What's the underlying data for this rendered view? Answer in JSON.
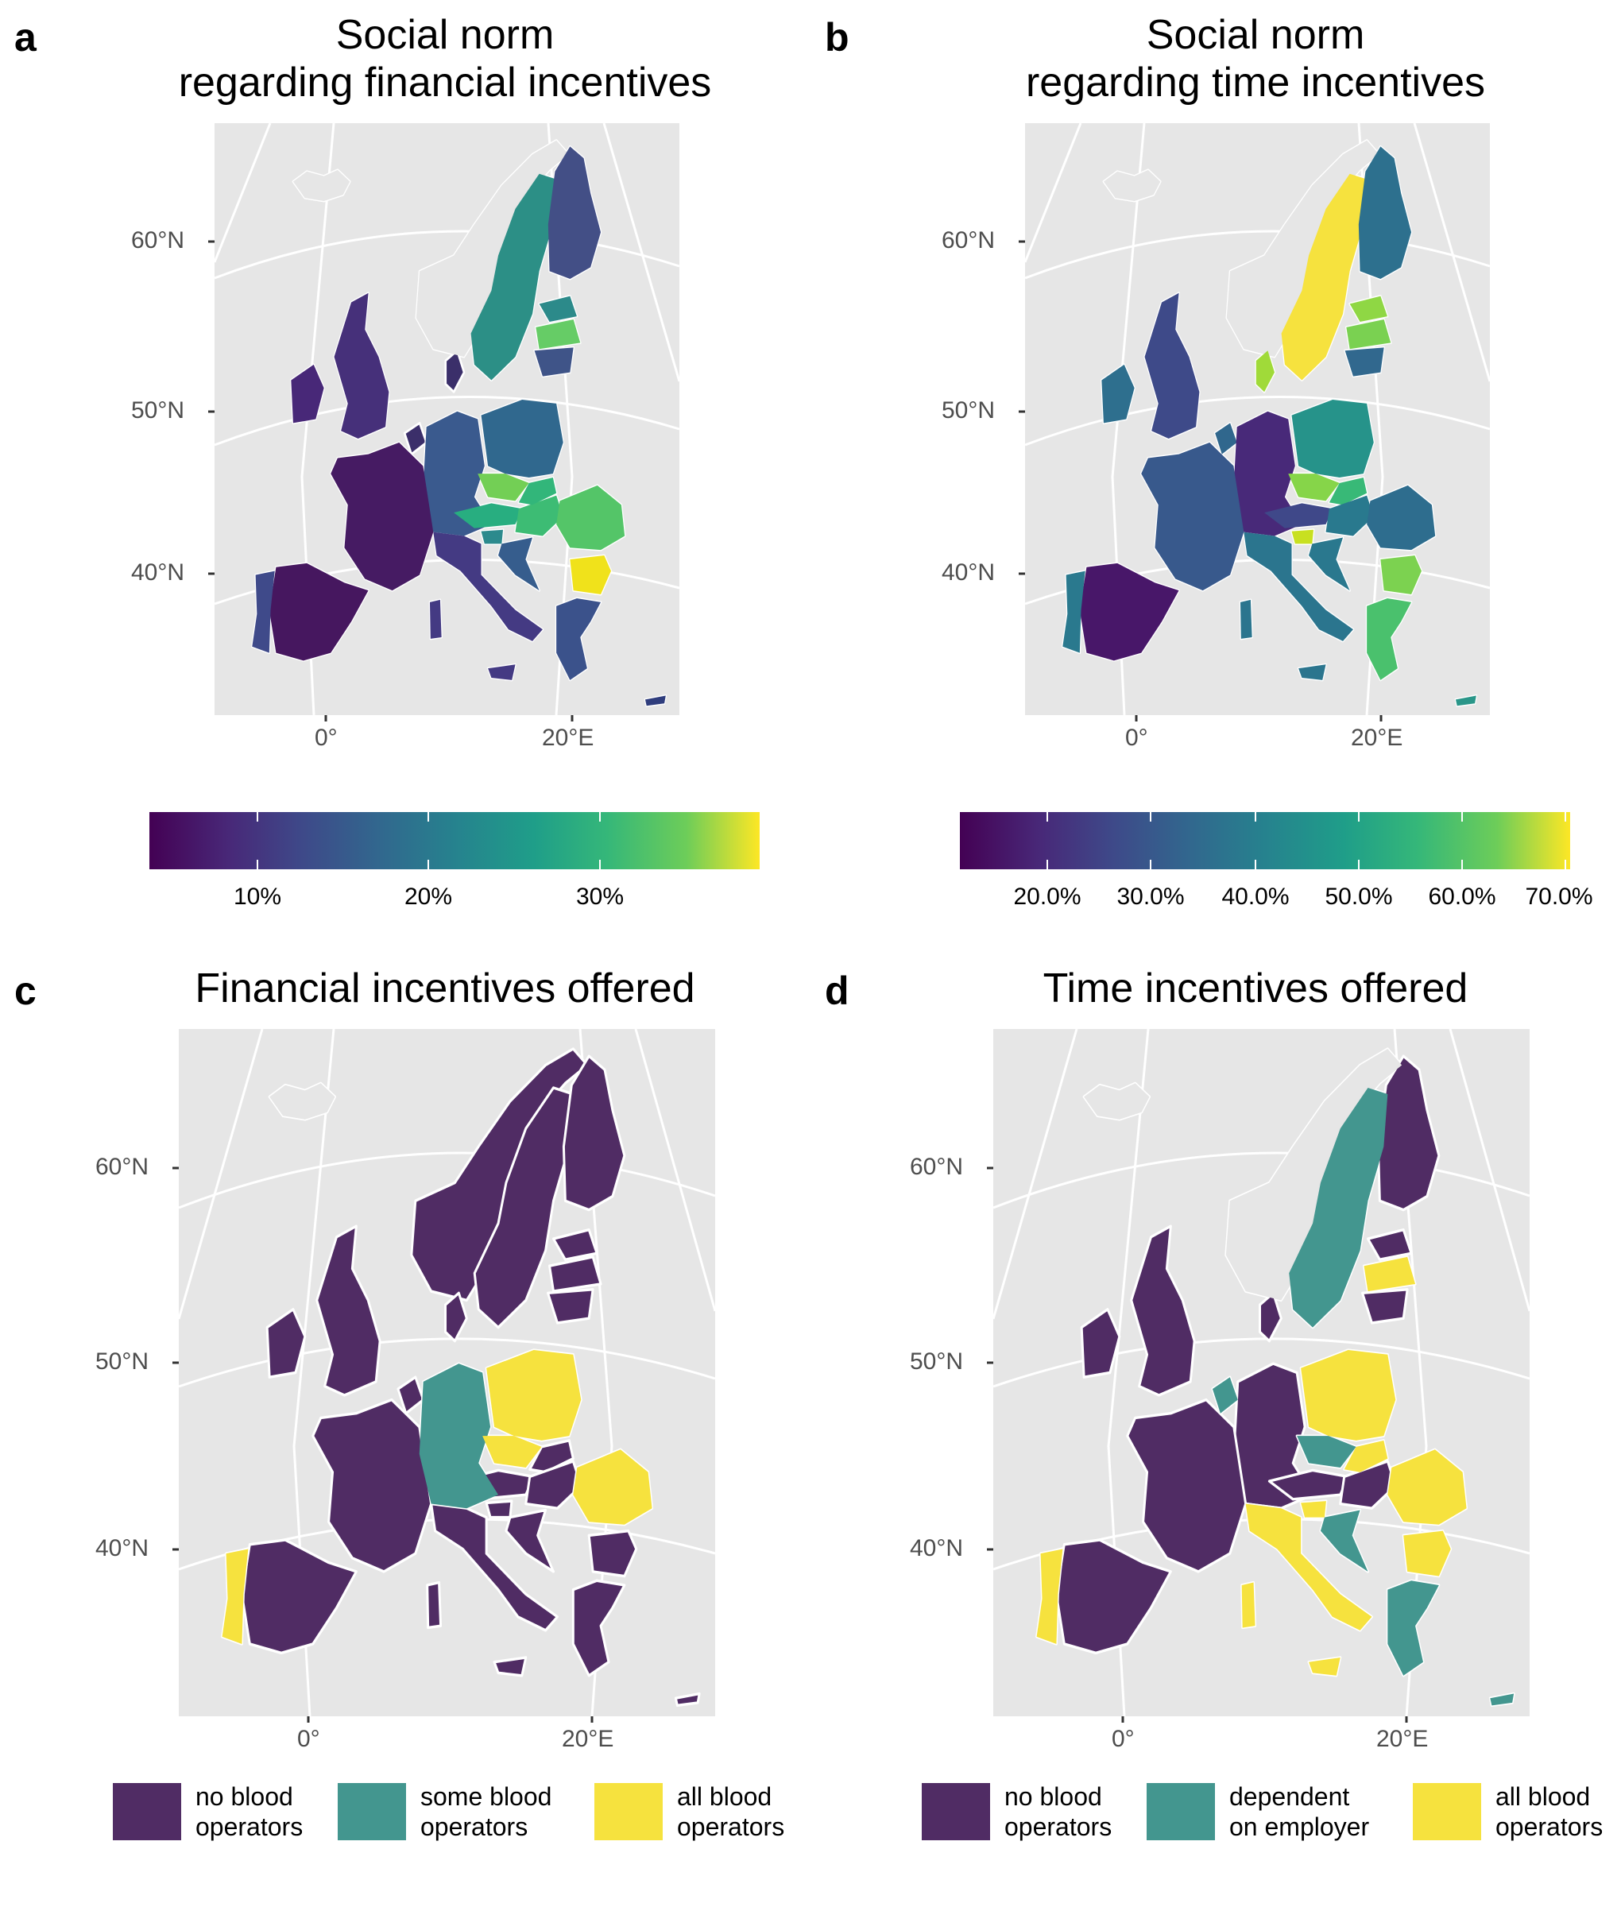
{
  "panels": [
    {
      "letter": "a",
      "title": "Social norm\nregarding financial incentives"
    },
    {
      "letter": "b",
      "title": "Social norm\nregarding time incentives"
    },
    {
      "letter": "c",
      "title": "Financial incentives offered"
    },
    {
      "letter": "d",
      "title": "Time incentives offered"
    }
  ],
  "axes": {
    "lat_labels": [
      "60°N",
      "50°N",
      "40°N"
    ],
    "lon_labels": [
      "0°",
      "20°E"
    ]
  },
  "colorbars": [
    {
      "ticks": [
        "10%",
        "20%",
        "30%"
      ]
    },
    {
      "ticks": [
        "20.0%",
        "30.0%",
        "40.0%",
        "50.0%",
        "60.0%",
        "70.0%"
      ]
    }
  ],
  "legend_c": [
    {
      "label": "no blood\noperators",
      "color": "#502C64"
    },
    {
      "label": "some blood\noperators",
      "color": "#43968F"
    },
    {
      "label": "all blood\noperators",
      "color": "#F6E23E"
    }
  ],
  "legend_d": [
    {
      "label": "no blood\noperators",
      "color": "#502C64"
    },
    {
      "label": "dependent\non employer",
      "color": "#43968F"
    },
    {
      "label": "all blood\noperators",
      "color": "#F6E23E"
    }
  ],
  "colors": {
    "panel_bg": "#E6E6E6",
    "grid": "#FFFFFF",
    "border": "#FFFFFF"
  }
}
